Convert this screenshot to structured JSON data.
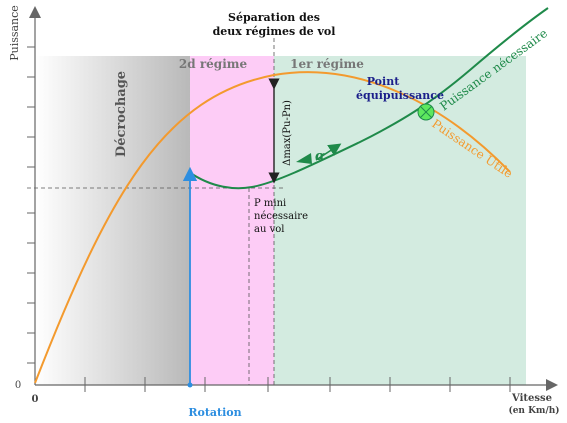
{
  "axes": {
    "y_label": "Puissance",
    "x_label": "Vitesse",
    "x_unit": "(en Km/h)",
    "origin_x": "0",
    "origin_y": "0"
  },
  "regions": {
    "stall": "Décrochage",
    "second_regime": "2d régime",
    "first_regime": "1er régime"
  },
  "labels": {
    "separation_line1": "Séparation des",
    "separation_line2": "deux régimes de vol",
    "delta_max": "Δmax(Pu-Pn)",
    "p_mini_line1": "P mini",
    "p_mini_line2": "nécessaire",
    "p_mini_line3": "au vol",
    "equi_line1": "Point",
    "equi_line2": "équipuissance",
    "alpha": "α",
    "useful_power": "Puissance Utile",
    "required_power": "Puissance nécessaire",
    "rotation": "Rotation"
  },
  "colors": {
    "useful": "#f39a2e",
    "required": "#1f8a4a",
    "rotation": "#2d8ee0",
    "label_blue": "#1b1f8a",
    "second_regime_bg": "#fdccf6",
    "first_regime_bg": "#d3ebe0",
    "equi_point": "#5ee85e"
  }
}
